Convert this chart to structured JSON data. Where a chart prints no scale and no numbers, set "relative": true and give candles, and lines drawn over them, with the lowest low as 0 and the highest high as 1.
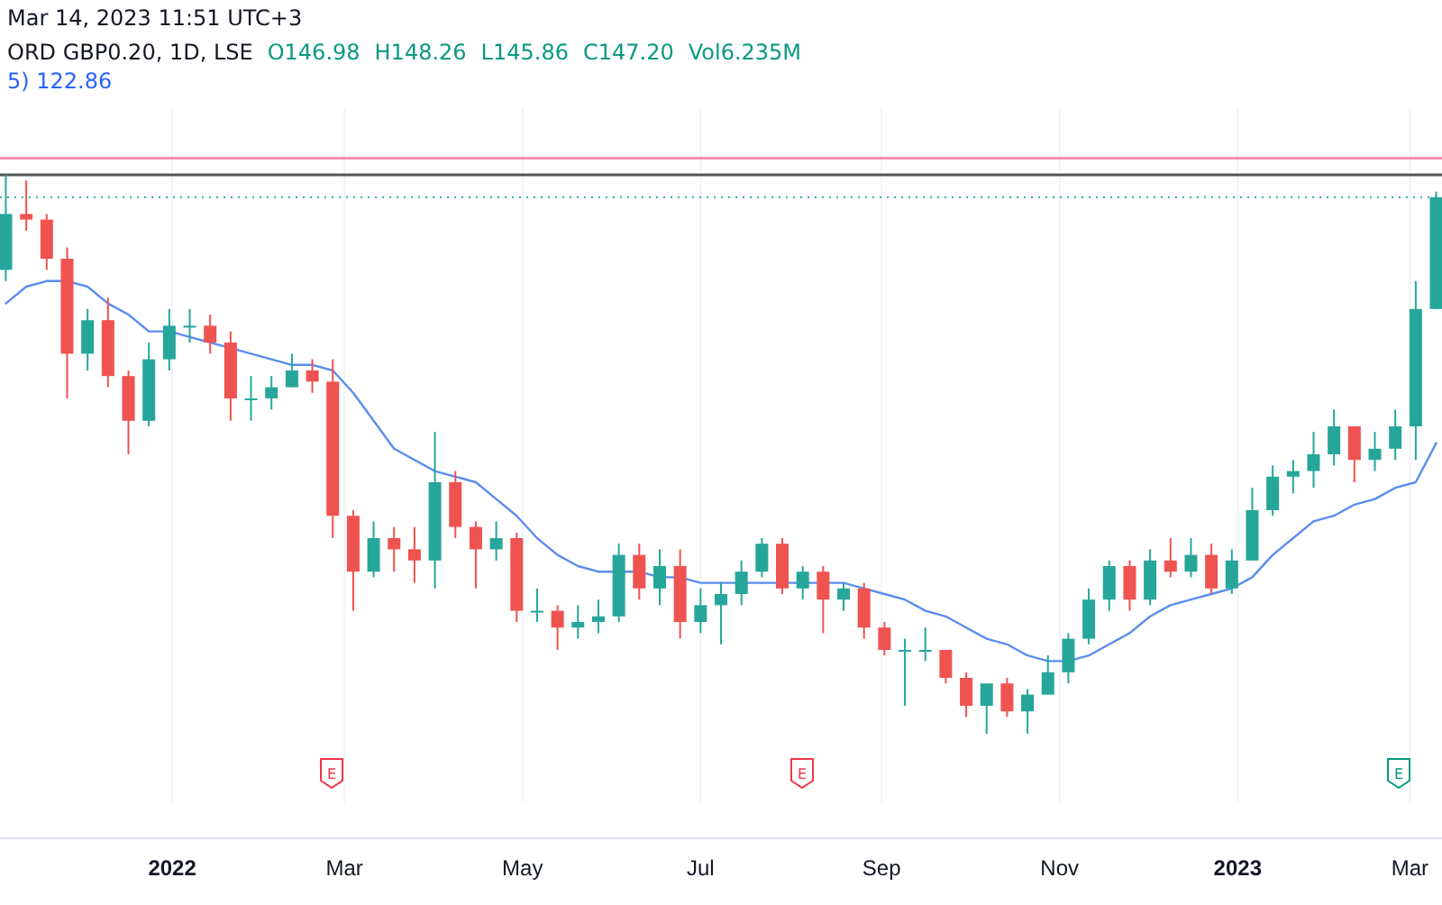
{
  "chart_data": {
    "type": "candlestick",
    "relative": true,
    "title": "ORD GBP0.20, 1D, LSE",
    "subtitle": "Mar 14, 2023 11:51 UTC+3",
    "annotations": [
      "O146.98",
      "H148.26",
      "L145.86",
      "C147.20",
      "Vol6.235M",
      "5) 122.86",
      "E",
      "E",
      "E"
    ],
    "xlim": [
      "2021-11-03",
      "2023-03-12"
    ],
    "xticks": [
      {
        "value": "2022-01-01",
        "label": "2022"
      },
      {
        "value": "2022-03-01",
        "label": "Mar"
      },
      {
        "value": "2022-05-01",
        "label": "May"
      },
      {
        "value": "2022-07-01",
        "label": "Jul"
      },
      {
        "value": "2022-09-01",
        "label": "Sep"
      },
      {
        "value": "2022-11-01",
        "label": "Nov"
      },
      {
        "value": "2023-01-01",
        "label": "2023"
      },
      {
        "value": "2023-03-01",
        "label": "Mar"
      }
    ],
    "grid": "x",
    "x": [
      "2021-11-05",
      "2021-11-12",
      "2021-11-19",
      "2021-11-26",
      "2021-12-03",
      "2021-12-10",
      "2021-12-17",
      "2021-12-24",
      "2021-12-31",
      "2022-01-07",
      "2022-01-14",
      "2022-01-21",
      "2022-01-28",
      "2022-02-04",
      "2022-02-11",
      "2022-02-18",
      "2022-02-25",
      "2022-03-04",
      "2022-03-11",
      "2022-03-18",
      "2022-03-25",
      "2022-04-01",
      "2022-04-08",
      "2022-04-15",
      "2022-04-22",
      "2022-04-29",
      "2022-05-06",
      "2022-05-13",
      "2022-05-20",
      "2022-05-27",
      "2022-06-03",
      "2022-06-10",
      "2022-06-17",
      "2022-06-24",
      "2022-07-01",
      "2022-07-08",
      "2022-07-15",
      "2022-07-22",
      "2022-07-29",
      "2022-08-05",
      "2022-08-12",
      "2022-08-19",
      "2022-08-26",
      "2022-09-02",
      "2022-09-09",
      "2022-09-16",
      "2022-09-23",
      "2022-09-30",
      "2022-10-07",
      "2022-10-14",
      "2022-10-21",
      "2022-10-28",
      "2022-11-04",
      "2022-11-11",
      "2022-11-18",
      "2022-11-25",
      "2022-12-02",
      "2022-12-09",
      "2022-12-16",
      "2022-12-23",
      "2022-12-30",
      "2023-01-06",
      "2023-01-13",
      "2023-01-20",
      "2023-01-27",
      "2023-02-03",
      "2023-02-10",
      "2023-02-17",
      "2023-02-24",
      "2023-03-03",
      "2023-03-10"
    ],
    "ohlc": [
      [
        0.83,
        1.0,
        0.81,
        0.93
      ],
      [
        0.93,
        0.99,
        0.9,
        0.92
      ],
      [
        0.92,
        0.93,
        0.83,
        0.85
      ],
      [
        0.85,
        0.87,
        0.6,
        0.68
      ],
      [
        0.68,
        0.76,
        0.65,
        0.74
      ],
      [
        0.74,
        0.78,
        0.62,
        0.64
      ],
      [
        0.64,
        0.65,
        0.5,
        0.56
      ],
      [
        0.56,
        0.7,
        0.55,
        0.67
      ],
      [
        0.67,
        0.76,
        0.65,
        0.73
      ],
      [
        0.73,
        0.76,
        0.7,
        0.73
      ],
      [
        0.73,
        0.75,
        0.68,
        0.7
      ],
      [
        0.7,
        0.72,
        0.56,
        0.6
      ],
      [
        0.6,
        0.64,
        0.56,
        0.6
      ],
      [
        0.6,
        0.64,
        0.58,
        0.62
      ],
      [
        0.62,
        0.68,
        0.62,
        0.65
      ],
      [
        0.65,
        0.67,
        0.61,
        0.63
      ],
      [
        0.63,
        0.67,
        0.35,
        0.39
      ],
      [
        0.39,
        0.4,
        0.22,
        0.29
      ],
      [
        0.29,
        0.38,
        0.28,
        0.35
      ],
      [
        0.35,
        0.37,
        0.29,
        0.33
      ],
      [
        0.33,
        0.37,
        0.27,
        0.31
      ],
      [
        0.31,
        0.54,
        0.26,
        0.45
      ],
      [
        0.45,
        0.47,
        0.35,
        0.37
      ],
      [
        0.37,
        0.38,
        0.26,
        0.33
      ],
      [
        0.33,
        0.38,
        0.31,
        0.35
      ],
      [
        0.35,
        0.36,
        0.2,
        0.22
      ],
      [
        0.22,
        0.26,
        0.2,
        0.22
      ],
      [
        0.22,
        0.23,
        0.15,
        0.19
      ],
      [
        0.19,
        0.23,
        0.17,
        0.2
      ],
      [
        0.2,
        0.24,
        0.18,
        0.21
      ],
      [
        0.21,
        0.34,
        0.2,
        0.32
      ],
      [
        0.32,
        0.34,
        0.24,
        0.26
      ],
      [
        0.26,
        0.33,
        0.23,
        0.3
      ],
      [
        0.3,
        0.33,
        0.17,
        0.2
      ],
      [
        0.2,
        0.26,
        0.18,
        0.23
      ],
      [
        0.23,
        0.27,
        0.16,
        0.25
      ],
      [
        0.25,
        0.31,
        0.23,
        0.29
      ],
      [
        0.29,
        0.35,
        0.28,
        0.34
      ],
      [
        0.34,
        0.35,
        0.25,
        0.26
      ],
      [
        0.26,
        0.3,
        0.24,
        0.29
      ],
      [
        0.29,
        0.3,
        0.18,
        0.24
      ],
      [
        0.24,
        0.27,
        0.22,
        0.26
      ],
      [
        0.26,
        0.27,
        0.17,
        0.19
      ],
      [
        0.19,
        0.2,
        0.14,
        0.15
      ],
      [
        0.15,
        0.17,
        0.05,
        0.15
      ],
      [
        0.15,
        0.19,
        0.13,
        0.15
      ],
      [
        0.15,
        0.15,
        0.09,
        0.1
      ],
      [
        0.1,
        0.11,
        0.03,
        0.05
      ],
      [
        0.05,
        0.09,
        0,
        0.09
      ],
      [
        0.09,
        0.1,
        0.03,
        0.04
      ],
      [
        0.04,
        0.08,
        0,
        0.07
      ],
      [
        0.07,
        0.14,
        0.07,
        0.11
      ],
      [
        0.11,
        0.18,
        0.09,
        0.17
      ],
      [
        0.17,
        0.26,
        0.16,
        0.24
      ],
      [
        0.24,
        0.31,
        0.22,
        0.3
      ],
      [
        0.3,
        0.31,
        0.22,
        0.24
      ],
      [
        0.24,
        0.33,
        0.23,
        0.31
      ],
      [
        0.31,
        0.35,
        0.28,
        0.29
      ],
      [
        0.29,
        0.35,
        0.28,
        0.32
      ],
      [
        0.32,
        0.34,
        0.25,
        0.26
      ],
      [
        0.26,
        0.33,
        0.25,
        0.31
      ],
      [
        0.31,
        0.44,
        0.31,
        0.4
      ],
      [
        0.4,
        0.48,
        0.39,
        0.46
      ],
      [
        0.46,
        0.49,
        0.43,
        0.47
      ],
      [
        0.47,
        0.54,
        0.44,
        0.5
      ],
      [
        0.5,
        0.58,
        0.48,
        0.55
      ],
      [
        0.55,
        0.55,
        0.45,
        0.49
      ],
      [
        0.49,
        0.54,
        0.47,
        0.51
      ],
      [
        0.51,
        0.58,
        0.49,
        0.55
      ],
      [
        0.55,
        0.81,
        0.49,
        0.76
      ],
      [
        0.76,
        0.97,
        0.76,
        0.96
      ]
    ],
    "series": [
      {
        "type": "line",
        "color": "#5b8def",
        "values": [
          0.77,
          0.8,
          0.81,
          0.81,
          0.8,
          0.77,
          0.75,
          0.72,
          0.72,
          0.71,
          0.7,
          0.69,
          0.68,
          0.67,
          0.66,
          0.66,
          0.65,
          0.61,
          0.56,
          0.51,
          0.49,
          0.47,
          0.46,
          0.45,
          0.42,
          0.39,
          0.35,
          0.32,
          0.3,
          0.29,
          0.29,
          0.29,
          0.28,
          0.28,
          0.27,
          0.27,
          0.27,
          0.27,
          0.27,
          0.27,
          0.27,
          0.27,
          0.26,
          0.25,
          0.24,
          0.22,
          0.21,
          0.19,
          0.17,
          0.16,
          0.14,
          0.13,
          0.13,
          0.14,
          0.16,
          0.18,
          0.21,
          0.23,
          0.24,
          0.25,
          0.26,
          0.28,
          0.32,
          0.35,
          0.38,
          0.39,
          0.41,
          0.42,
          0.44,
          0.45,
          0.52
        ]
      }
    ],
    "ref_lines": [
      {
        "axis": "y",
        "value": 1.03,
        "color": "#f48fb1",
        "line_style": "solid"
      },
      {
        "axis": "y",
        "value": 1.0,
        "color": "#555555",
        "line_style": "solid"
      },
      {
        "axis": "y",
        "value": 0.96,
        "color": "#26a69a",
        "line_style": "dotted"
      }
    ]
  }
}
